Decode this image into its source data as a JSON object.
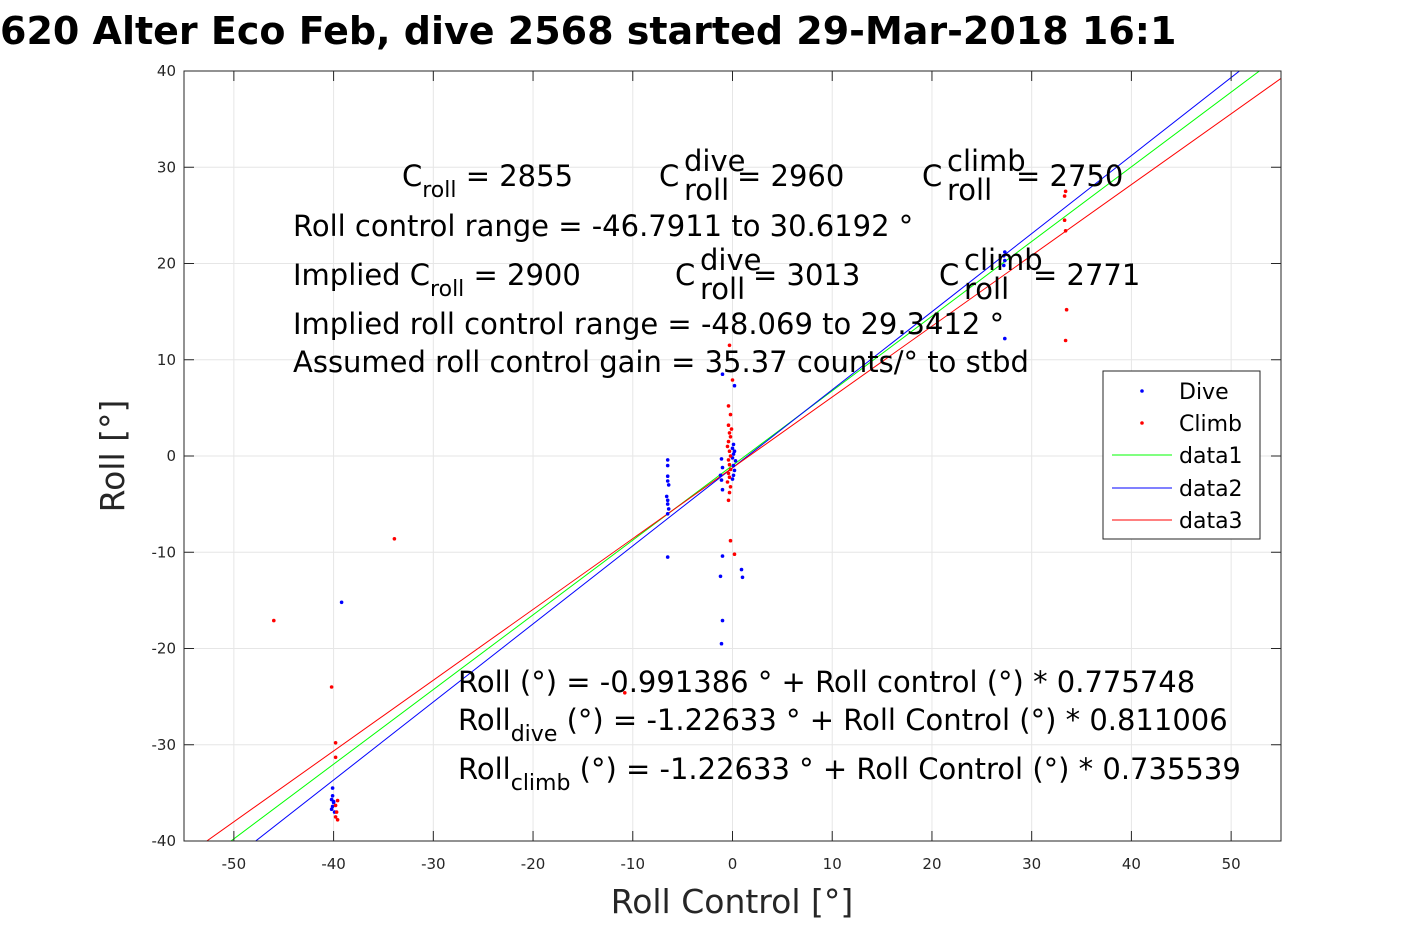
{
  "chart_data": {
    "type": "scatter",
    "title": "620 Alter Eco Feb, dive 2568 started 29-Mar-2018 16:1",
    "xlabel": "Roll Control [°]",
    "ylabel": "Roll [°]",
    "xlim": [
      -55,
      55
    ],
    "ylim": [
      -40,
      40
    ],
    "xticks": [
      -50,
      -40,
      -30,
      -20,
      -10,
      0,
      10,
      20,
      30,
      40,
      50
    ],
    "yticks": [
      -40,
      -30,
      -20,
      -10,
      0,
      10,
      20,
      30,
      40
    ],
    "grid": true,
    "legend_position": "right",
    "series": [
      {
        "name": "Dive",
        "kind": "points",
        "color": "#0000ff",
        "points": [
          [
            -40.1,
            -34.5
          ],
          [
            -40.1,
            -35.3
          ],
          [
            -40.2,
            -35.7
          ],
          [
            -40.0,
            -36.0
          ],
          [
            -40.1,
            -36.4
          ],
          [
            -40.2,
            -36.7
          ],
          [
            -39.9,
            -37.0
          ],
          [
            -40.0,
            -35.9
          ],
          [
            -39.2,
            -15.2
          ],
          [
            -6.5,
            -0.4
          ],
          [
            -6.5,
            -1.0
          ],
          [
            -6.5,
            -2.1
          ],
          [
            -6.5,
            -2.6
          ],
          [
            -6.4,
            -3.0
          ],
          [
            -6.6,
            -4.2
          ],
          [
            -6.5,
            -4.6
          ],
          [
            -6.5,
            -5.0
          ],
          [
            -6.4,
            -5.5
          ],
          [
            -6.5,
            -6.0
          ],
          [
            -6.5,
            -10.5
          ],
          [
            -1.0,
            8.5
          ],
          [
            -1.1,
            -0.3
          ],
          [
            -1.0,
            -1.2
          ],
          [
            -1.2,
            -2.0
          ],
          [
            -1.1,
            -2.5
          ],
          [
            -1.0,
            -3.5
          ],
          [
            -1.0,
            -10.4
          ],
          [
            -1.2,
            -12.5
          ],
          [
            -1.0,
            -17.1
          ],
          [
            -1.1,
            -19.5
          ],
          [
            0.2,
            7.3
          ],
          [
            0.1,
            1.2
          ],
          [
            0.0,
            0.8
          ],
          [
            0.2,
            0.5
          ],
          [
            0.1,
            0.2
          ],
          [
            0.0,
            -0.2
          ],
          [
            0.3,
            -0.5
          ],
          [
            0.1,
            -1.0
          ],
          [
            0.2,
            -1.5
          ],
          [
            0.1,
            -2.0
          ],
          [
            0.0,
            -2.4
          ],
          [
            0.9,
            -11.8
          ],
          [
            1.0,
            -12.6
          ],
          [
            27.3,
            21.2
          ],
          [
            27.2,
            20.8
          ],
          [
            27.3,
            20.3
          ],
          [
            27.2,
            19.8
          ],
          [
            27.3,
            12.2
          ]
        ]
      },
      {
        "name": "Climb",
        "kind": "points",
        "color": "#ff0000",
        "points": [
          [
            -46.0,
            -17.1
          ],
          [
            -33.9,
            -8.6
          ],
          [
            -10.8,
            -24.6
          ],
          [
            -40.2,
            -24.0
          ],
          [
            -39.8,
            -29.8
          ],
          [
            -39.8,
            -31.3
          ],
          [
            -39.6,
            -35.8
          ],
          [
            -39.8,
            -36.3
          ],
          [
            -39.7,
            -37.0
          ],
          [
            -39.8,
            -37.5
          ],
          [
            -39.6,
            -37.8
          ],
          [
            -0.3,
            11.5
          ],
          [
            0.0,
            7.9
          ],
          [
            -0.4,
            5.2
          ],
          [
            -0.2,
            4.3
          ],
          [
            -0.4,
            3.2
          ],
          [
            -0.1,
            2.8
          ],
          [
            -0.3,
            2.4
          ],
          [
            -0.2,
            2.0
          ],
          [
            -0.4,
            1.5
          ],
          [
            -0.5,
            1.0
          ],
          [
            -0.3,
            0.5
          ],
          [
            -0.2,
            0.0
          ],
          [
            -0.4,
            -0.4
          ],
          [
            -0.3,
            -0.9
          ],
          [
            -0.2,
            -1.4
          ],
          [
            -0.4,
            -1.8
          ],
          [
            -0.3,
            -2.2
          ],
          [
            -0.5,
            -2.7
          ],
          [
            -0.2,
            -3.2
          ],
          [
            -0.3,
            -3.8
          ],
          [
            -0.4,
            -4.6
          ],
          [
            -0.2,
            -8.8
          ],
          [
            0.2,
            -10.2
          ],
          [
            33.4,
            27.5
          ],
          [
            33.3,
            27.0
          ],
          [
            33.3,
            24.5
          ],
          [
            33.4,
            23.4
          ],
          [
            33.5,
            15.2
          ],
          [
            33.4,
            12.0
          ]
        ]
      },
      {
        "name": "data1",
        "kind": "line",
        "color": "#00ff00",
        "x": [
          -55,
          55
        ],
        "y": [
          -43.66,
          41.68
        ]
      },
      {
        "name": "data2",
        "kind": "line",
        "color": "#0000ff",
        "x": [
          -55,
          55
        ],
        "y": [
          -45.83,
          43.38
        ]
      },
      {
        "name": "data3",
        "kind": "line",
        "color": "#ff0000",
        "x": [
          -55,
          55
        ],
        "y": [
          -41.68,
          39.23
        ]
      }
    ]
  },
  "annotations": {
    "croll": "C",
    "croll_sub": "roll",
    "croll_val": " = 2855",
    "cdive": "C",
    "cdive_sup": "dive",
    "cdive_sub": "roll",
    "cdive_val": " = 2960",
    "cclimb": "C",
    "cclimb_sup": "climb",
    "cclimb_sub": "roll",
    "cclimb_val": " = 2750",
    "range": "Roll control range = -46.7911 to 30.6192 °",
    "implied_croll": "Implied C",
    "implied_croll_sub": "roll",
    "implied_croll_val": " = 2900",
    "implied_cdive": "C",
    "implied_cdive_sup": "dive",
    "implied_cdive_sub": "roll",
    "implied_cdive_val": " = 3013",
    "implied_cclimb": "C",
    "implied_cclimb_sup": "climb",
    "implied_cclimb_sub": "roll",
    "implied_cclimb_val": " = 2771",
    "implied_range": "Implied roll control range = -48.069 to 29.3412 °",
    "gain": "Assumed roll control gain = 35.37 counts/° to stbd",
    "fit1": "Roll (°) = -0.991386 ° + Roll control (°) * 0.775748",
    "fit2_main": "Roll",
    "fit2_sub": "dive",
    "fit2_rest": " (°) = -1.22633 ° + Roll Control (°) * 0.811006",
    "fit3_main": "Roll",
    "fit3_sub": "climb",
    "fit3_rest": " (°) = -1.22633 ° + Roll Control (°) * 0.735539"
  },
  "legend": {
    "items": [
      {
        "label": "Dive",
        "kind": "point",
        "color": "#0000ff"
      },
      {
        "label": "Climb",
        "kind": "point",
        "color": "#ff0000"
      },
      {
        "label": "data1",
        "kind": "line",
        "color": "#00ff00"
      },
      {
        "label": "data2",
        "kind": "line",
        "color": "#0000ff"
      },
      {
        "label": "data3",
        "kind": "line",
        "color": "#ff0000"
      }
    ]
  }
}
